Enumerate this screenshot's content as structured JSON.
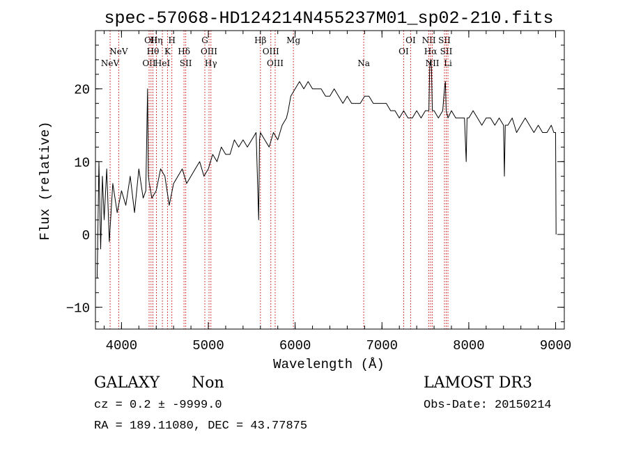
{
  "chart_data": {
    "type": "line",
    "title": "spec-57068-HD124214N455237M01_sp02-210.fits",
    "xlabel": "Wavelength (Å)",
    "ylabel": "Flux (relative)",
    "xlim": [
      3700,
      9100
    ],
    "ylim": [
      -13,
      28
    ],
    "xticks": [
      4000,
      5000,
      6000,
      7000,
      8000,
      9000
    ],
    "xtick_labels": [
      "4000",
      "5000",
      "6000",
      "7000",
      "8000",
      "9000"
    ],
    "yticks": [
      -10,
      0,
      10,
      20
    ],
    "ytick_labels": [
      "−10",
      "0",
      "10",
      "20"
    ],
    "series": [
      {
        "name": "flux",
        "x": [
          3720,
          3740,
          3760,
          3780,
          3800,
          3830,
          3860,
          3900,
          3950,
          4000,
          4050,
          4100,
          4150,
          4200,
          4250,
          4280,
          4300,
          4310,
          4320,
          4350,
          4400,
          4450,
          4500,
          4550,
          4600,
          4650,
          4700,
          4750,
          4800,
          4850,
          4900,
          4950,
          5000,
          5050,
          5100,
          5150,
          5200,
          5250,
          5300,
          5350,
          5400,
          5450,
          5500,
          5550,
          5580,
          5590,
          5600,
          5650,
          5700,
          5750,
          5800,
          5850,
          5900,
          5920,
          5950,
          6000,
          6050,
          6100,
          6150,
          6200,
          6250,
          6300,
          6350,
          6400,
          6450,
          6500,
          6550,
          6600,
          6650,
          6700,
          6750,
          6800,
          6850,
          6900,
          6950,
          7000,
          7050,
          7100,
          7150,
          7200,
          7250,
          7300,
          7350,
          7400,
          7450,
          7500,
          7540,
          7550,
          7560,
          7570,
          7580,
          7600,
          7650,
          7700,
          7720,
          7730,
          7740,
          7760,
          7800,
          7850,
          7900,
          7950,
          7970,
          7980,
          8000,
          8050,
          8100,
          8150,
          8200,
          8250,
          8300,
          8350,
          8400,
          8410,
          8420,
          8450,
          8500,
          8550,
          8600,
          8650,
          8700,
          8750,
          8800,
          8850,
          8900,
          8950,
          8980,
          9000,
          9005
        ],
        "y": [
          -6,
          10,
          -2,
          8,
          2,
          9,
          -1,
          7,
          3,
          6,
          4,
          8,
          3,
          9,
          5,
          6,
          20,
          8,
          7,
          5,
          6,
          9,
          8,
          4,
          7,
          8,
          9,
          7,
          8,
          9,
          10,
          8,
          9,
          11,
          10,
          12,
          11,
          11,
          13,
          12,
          13,
          12,
          13,
          14,
          2,
          13,
          14,
          13,
          12,
          14,
          13,
          15,
          16,
          17,
          19,
          20,
          21,
          20,
          21,
          20,
          20,
          20,
          19,
          19,
          20,
          19,
          18,
          19,
          18,
          18,
          18,
          19,
          19,
          18,
          18,
          18,
          18,
          17,
          17,
          16,
          17,
          16,
          16,
          17,
          16,
          17,
          17,
          23,
          24,
          23,
          17,
          17,
          16,
          17,
          20,
          21,
          17,
          16,
          17,
          16,
          16,
          16,
          10,
          16,
          16,
          17,
          16,
          15,
          16,
          16,
          15,
          16,
          15,
          8,
          15,
          15,
          16,
          14,
          15,
          16,
          15,
          14,
          15,
          14,
          14,
          15,
          14,
          14,
          0
        ]
      }
    ],
    "line_markers": [
      {
        "x": 3869,
        "label": "NeV",
        "row": 2
      },
      {
        "x": 3968,
        "label": "NeV",
        "row": 1
      },
      {
        "x": 4318,
        "label": "OII",
        "row": 2
      },
      {
        "x": 4340,
        "label": "OII",
        "row": 0
      },
      {
        "x": 4362,
        "label": "Hθ",
        "row": 1
      },
      {
        "x": 4402,
        "label": "Hη",
        "row": 0
      },
      {
        "x": 4471,
        "label": "HeI",
        "row": 2
      },
      {
        "x": 4530,
        "label": "K",
        "row": 1
      },
      {
        "x": 4580,
        "label": "H",
        "row": 0
      },
      {
        "x": 4720,
        "label": "Hδ",
        "row": 1
      },
      {
        "x": 4740,
        "label": "SII",
        "row": 2
      },
      {
        "x": 4960,
        "label": "G",
        "row": 0
      },
      {
        "x": 5008,
        "label": "OIII",
        "row": 1
      },
      {
        "x": 5030,
        "label": "Hγ",
        "row": 2
      },
      {
        "x": 5600,
        "label": "Hβ",
        "row": 0
      },
      {
        "x": 5720,
        "label": "OIII",
        "row": 1
      },
      {
        "x": 5770,
        "label": "OIII",
        "row": 2
      },
      {
        "x": 5980,
        "label": "Mg",
        "row": 0
      },
      {
        "x": 6790,
        "label": "Na",
        "row": 2
      },
      {
        "x": 7250,
        "label": "OI",
        "row": 1
      },
      {
        "x": 7330,
        "label": "OI",
        "row": 0
      },
      {
        "x": 7540,
        "label": "NII",
        "row": 0
      },
      {
        "x": 7560,
        "label": "Hα",
        "row": 1
      },
      {
        "x": 7580,
        "label": "NII",
        "row": 2
      },
      {
        "x": 7720,
        "label": "SII",
        "row": 0
      },
      {
        "x": 7740,
        "label": "SII",
        "row": 1
      },
      {
        "x": 7760,
        "label": "Li",
        "row": 2
      }
    ]
  },
  "info": {
    "class_label": "GALAXY",
    "subclass_label": "Non",
    "survey": "LAMOST DR3",
    "redshift_text": "cz = 0.2 ± -9999.0",
    "obs_date_text": "Obs-Date: 20150214",
    "coords_text": "RA = 189.11080, DEC =  43.77875"
  },
  "colors": {
    "foreground": "#000000",
    "marker": "#cc0000",
    "background": "#ffffff"
  }
}
